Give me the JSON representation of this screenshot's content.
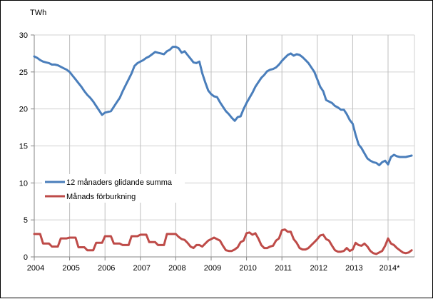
{
  "chart_data": {
    "type": "line",
    "title": "",
    "xlabel": "",
    "ylabel": "TWh",
    "ylim": [
      0,
      30
    ],
    "yticks": [
      0,
      5,
      10,
      15,
      20,
      25,
      30
    ],
    "x_tick_labels": [
      "2004",
      "2005",
      "2006",
      "2007",
      "2008",
      "2009",
      "2010",
      "2011",
      "2012",
      "2013",
      "2014*"
    ],
    "x_start": "2004-01",
    "x_end": "2014-09",
    "x_frequency": "monthly",
    "grid": true,
    "legend_position": "inside-left-middle",
    "series": [
      {
        "name": "12 månaders glidande summa",
        "color": "#4a7ebb",
        "values": [
          27.1,
          26.9,
          26.6,
          26.4,
          26.3,
          26.2,
          26.0,
          26.0,
          25.9,
          25.7,
          25.5,
          25.3,
          25.0,
          24.5,
          24.0,
          23.5,
          23.0,
          22.4,
          21.9,
          21.5,
          21.0,
          20.4,
          19.8,
          19.2,
          19.5,
          19.6,
          19.7,
          20.3,
          20.9,
          21.5,
          22.4,
          23.2,
          24.0,
          24.8,
          25.8,
          26.2,
          26.4,
          26.6,
          26.9,
          27.1,
          27.4,
          27.7,
          27.6,
          27.5,
          27.4,
          27.8,
          28.0,
          28.4,
          28.4,
          28.2,
          27.6,
          27.8,
          27.3,
          26.8,
          26.3,
          26.2,
          26.4,
          24.8,
          23.6,
          22.5,
          22.0,
          21.7,
          21.6,
          20.9,
          20.3,
          19.7,
          19.3,
          18.8,
          18.4,
          18.9,
          19.0,
          20.0,
          20.8,
          21.5,
          22.2,
          23.0,
          23.6,
          24.2,
          24.6,
          25.1,
          25.3,
          25.4,
          25.6,
          26.0,
          26.5,
          26.9,
          27.3,
          27.5,
          27.2,
          27.4,
          27.3,
          27.0,
          26.6,
          26.2,
          25.6,
          25.0,
          24.0,
          23.0,
          22.4,
          21.2,
          21.0,
          20.8,
          20.4,
          20.2,
          19.9,
          19.9,
          19.3,
          18.5,
          18.0,
          16.5,
          15.2,
          14.7,
          14.0,
          13.3,
          13.0,
          12.8,
          12.7,
          12.4,
          12.8,
          13.0,
          12.5,
          13.5,
          13.8,
          13.6,
          13.5,
          13.5,
          13.5,
          13.6,
          13.7
        ]
      },
      {
        "name": "Månads förburkning",
        "color": "#be4b48",
        "values": [
          3.1,
          3.1,
          3.1,
          1.8,
          1.8,
          1.8,
          1.4,
          1.4,
          1.4,
          2.5,
          2.5,
          2.5,
          2.6,
          2.6,
          2.6,
          1.3,
          1.3,
          1.3,
          0.9,
          0.9,
          0.9,
          1.9,
          1.9,
          1.9,
          2.8,
          2.8,
          2.8,
          1.8,
          1.8,
          1.8,
          1.6,
          1.6,
          1.6,
          2.8,
          2.8,
          2.8,
          3.0,
          3.0,
          3.0,
          2.0,
          2.0,
          2.0,
          1.6,
          1.6,
          1.6,
          3.1,
          3.1,
          3.1,
          3.1,
          2.7,
          2.4,
          2.3,
          1.9,
          1.4,
          1.2,
          1.6,
          1.6,
          1.4,
          1.8,
          2.2,
          2.4,
          2.6,
          2.4,
          2.2,
          1.5,
          0.9,
          0.8,
          0.8,
          1.0,
          1.3,
          2.0,
          2.2,
          3.2,
          3.3,
          3.0,
          3.2,
          2.5,
          1.6,
          1.2,
          1.2,
          1.4,
          1.5,
          2.2,
          2.5,
          3.6,
          3.7,
          3.4,
          3.4,
          2.4,
          1.9,
          1.2,
          1.0,
          1.0,
          1.2,
          1.6,
          2.0,
          2.4,
          2.9,
          3.0,
          2.4,
          2.2,
          1.5,
          0.9,
          0.7,
          0.7,
          0.8,
          1.2,
          0.8,
          1.0,
          1.9,
          1.6,
          1.5,
          1.8,
          1.4,
          0.8,
          0.5,
          0.4,
          0.6,
          0.8,
          1.5,
          2.5,
          1.8,
          1.6,
          1.2,
          0.9,
          0.6,
          0.5,
          0.6,
          0.9
        ]
      }
    ]
  }
}
